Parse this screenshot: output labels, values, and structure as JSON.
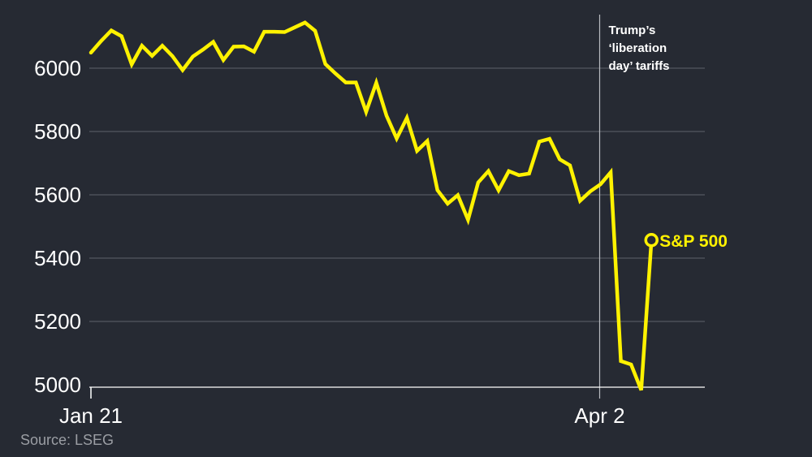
{
  "chart_data": {
    "type": "line",
    "title": "",
    "xlabel": "",
    "ylabel": "",
    "x_tick_labels": [
      "Jan 21",
      "Apr 2"
    ],
    "y_ticks": [
      5000,
      5200,
      5400,
      5600,
      5800,
      6000
    ],
    "ylim": [
      4970,
      6160
    ],
    "grid": "horizontal",
    "colors": {
      "background": "#262a33",
      "series": "#fff200",
      "grid": "#5f636b",
      "annotation_line": "#b9bcc1",
      "text": "#ffffff",
      "source_text": "#9b9ea4"
    },
    "annotation": {
      "x_label": "Apr 2",
      "lines": [
        "Trump’s",
        "‘liberation",
        "day’ tariffs"
      ]
    },
    "series": [
      {
        "name": "S&P 500",
        "end_marker": "circle",
        "values": [
          6049,
          6086,
          6119,
          6101,
          6012,
          6071,
          6039,
          6071,
          6038,
          5994,
          6037,
          6059,
          6083,
          6026,
          6068,
          6069,
          6052,
          6115,
          6115,
          6114,
          6129,
          6144,
          6118,
          6013,
          5983,
          5955,
          5955,
          5862,
          5954,
          5850,
          5778,
          5843,
          5739,
          5770,
          5615,
          5572,
          5599,
          5521,
          5639,
          5675,
          5614,
          5675,
          5662,
          5667,
          5768,
          5777,
          5712,
          5693,
          5581,
          5611,
          5633,
          5671,
          5075,
          5064,
          4983,
          5457
        ]
      }
    ]
  },
  "source": "Source: LSEG"
}
